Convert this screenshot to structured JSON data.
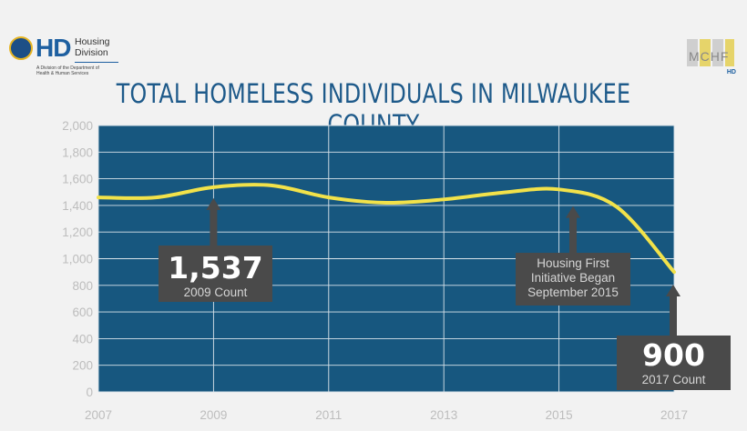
{
  "header": {
    "org_letters": "HD",
    "org_name_line1": "Housing",
    "org_name_line2": "Division",
    "org_tagline_line1": "A Division of the Department of",
    "org_tagline_line2": "Health & Human Services",
    "partner_logo_text": "MCHF",
    "partner_logo_sub": "HD"
  },
  "colors": {
    "background": "#f2f2f2",
    "plot_area": "#17577f",
    "grid": "#d9e3ea",
    "line": "#f2e24a",
    "callout_box": "#4a4a4a",
    "arrow": "#4a4a4a",
    "title": "#1e5a8a"
  },
  "chart_data": {
    "type": "line",
    "title": "TOTAL HOMELESS INDIVIDUALS IN MILWAUKEE COUNTY",
    "xlabel": "",
    "ylabel": "",
    "xlim": [
      2007,
      2017.5
    ],
    "ylim": [
      0,
      2000
    ],
    "x_ticks": [
      2007,
      2009,
      2011,
      2013,
      2015,
      2017
    ],
    "y_ticks": [
      0,
      200,
      400,
      600,
      800,
      1000,
      1200,
      1400,
      1600,
      1800,
      2000
    ],
    "y_tick_labels": [
      "0",
      "200",
      "400",
      "600",
      "800",
      "1,000",
      "1,200",
      "1,400",
      "1,600",
      "1,800",
      "2,000"
    ],
    "grid": true,
    "series": [
      {
        "name": "Total Homeless Individuals",
        "x": [
          2007,
          2008,
          2009,
          2010,
          2011,
          2012,
          2013,
          2014,
          2015,
          2016,
          2017
        ],
        "y": [
          1460,
          1460,
          1537,
          1550,
          1460,
          1420,
          1445,
          1495,
          1520,
          1390,
          900
        ]
      }
    ],
    "annotations": [
      {
        "id": "ann-2009",
        "big": "1,537",
        "small": "2009 Count",
        "x": 2009,
        "y": 1537
      },
      {
        "id": "ann-2015",
        "lines": [
          "Housing First",
          "Initiative Began",
          "September 2015"
        ],
        "x": 2015.2,
        "y": 1395
      },
      {
        "id": "ann-2017",
        "big": "900",
        "small": "2017 Count",
        "x": 2017,
        "y": 800
      }
    ]
  }
}
